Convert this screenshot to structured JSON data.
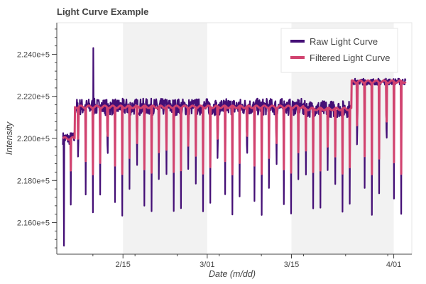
{
  "chart_data": {
    "type": "line",
    "title": "Light Curve Example",
    "xlabel": "Date (m/dd)",
    "ylabel": "Intensity",
    "x_ticks": [
      "2/15",
      "3/01",
      "3/15",
      "4/01"
    ],
    "y_ticks": [
      "2.160e+5",
      "2.180e+5",
      "2.200e+5",
      "2.220e+5",
      "2.240e+5"
    ],
    "x_range": [
      "2019-02-04",
      "2019-04-04"
    ],
    "ylim": [
      214500,
      225500
    ],
    "grid": false,
    "shaded_bands": [
      {
        "start": "2019-02-15",
        "end": "2019-03-01"
      },
      {
        "start": "2019-03-15",
        "end": "2019-04-01"
      }
    ],
    "legend": {
      "placement": "top-right"
    },
    "series": [
      {
        "name": "Raw Light Curve",
        "color": "#440f76",
        "segments": [
          {
            "start": "2019-02-05",
            "end": "2019-02-07",
            "level": 220000,
            "noise": 300
          },
          {
            "start": "2019-02-07",
            "end": "2019-03-17",
            "level": 221500,
            "noise": 400
          },
          {
            "start": "2019-03-17",
            "end": "2019-03-25",
            "level": 221400,
            "noise": 400
          },
          {
            "start": "2019-03-25",
            "end": "2019-04-03",
            "level": 222700,
            "noise": 150
          }
        ],
        "dip_interval_days": 1.22,
        "dip_minimum": 216400,
        "min_value": 214900,
        "max_value": 224300
      },
      {
        "name": "Filtered Light Curve",
        "color": "#d1426f",
        "segments": [
          {
            "start": "2019-02-05",
            "end": "2019-02-07",
            "level": 220000
          },
          {
            "start": "2019-02-07",
            "end": "2019-03-17",
            "level": 221500
          },
          {
            "start": "2019-03-17",
            "end": "2019-03-25",
            "level": 221400
          },
          {
            "start": "2019-03-25",
            "end": "2019-04-03",
            "level": 222700
          }
        ],
        "dip_minimum": 218300
      }
    ]
  }
}
